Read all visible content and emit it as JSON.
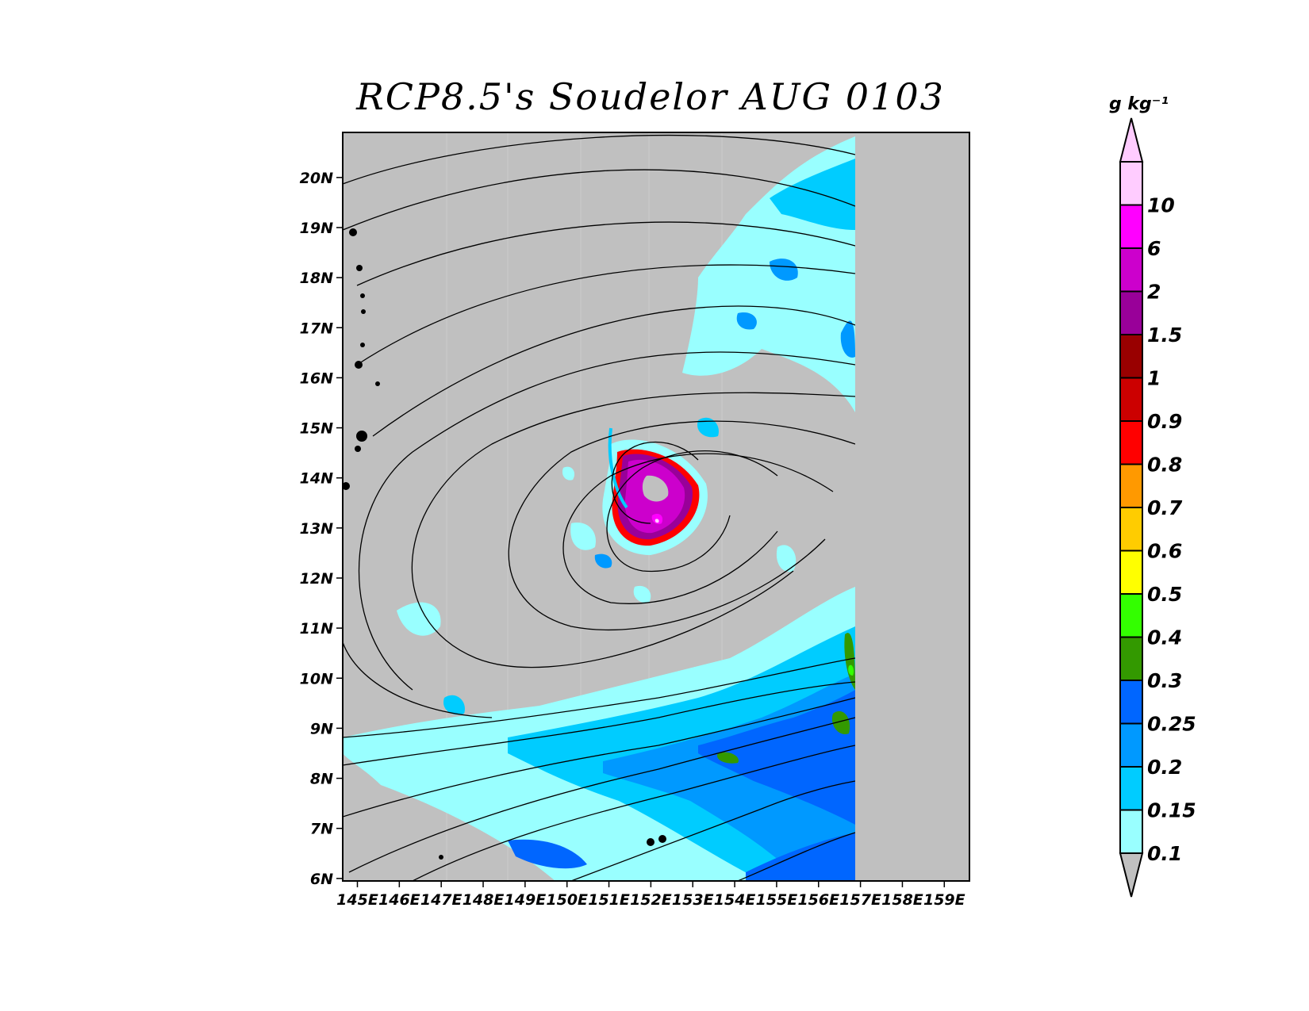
{
  "title": "RCP8.5's Soudelor AUG 0103",
  "map": {
    "lat_labels": [
      "6N",
      "7N",
      "8N",
      "9N",
      "10N",
      "11N",
      "12N",
      "13N",
      "14N",
      "15N",
      "16N",
      "17N",
      "18N",
      "19N",
      "20N"
    ],
    "lon_labels": [
      "145E",
      "146E",
      "147E",
      "148E",
      "149E",
      "150E",
      "151E",
      "152E",
      "153E",
      "154E",
      "155E",
      "156E",
      "157E",
      "158E",
      "159E"
    ],
    "lat_range": [
      5.95,
      20.9
    ],
    "lon_range": [
      144.65,
      159.6
    ],
    "data_edge_lon": 156.95,
    "background_color": "#c0c0c0",
    "storm_center": {
      "lon": 152.0,
      "lat": 13.6
    }
  },
  "colorbar": {
    "unit": "g kg⁻¹",
    "labels": [
      "0.1",
      "0.15",
      "0.2",
      "0.25",
      "0.3",
      "0.4",
      "0.5",
      "0.6",
      "0.7",
      "0.8",
      "0.9",
      "1",
      "1.5",
      "2",
      "6",
      "10"
    ],
    "colors": [
      "#99ffff",
      "#00ccff",
      "#0099ff",
      "#0066ff",
      "#339900",
      "#33ff00",
      "#ffff00",
      "#ffcc00",
      "#ff9900",
      "#ff0000",
      "#cc0000",
      "#990000",
      "#990099",
      "#cc00cc",
      "#ff00ff",
      "#ffccff"
    ],
    "under_color": "#c0c0c0",
    "over_color": "#ffccff"
  }
}
